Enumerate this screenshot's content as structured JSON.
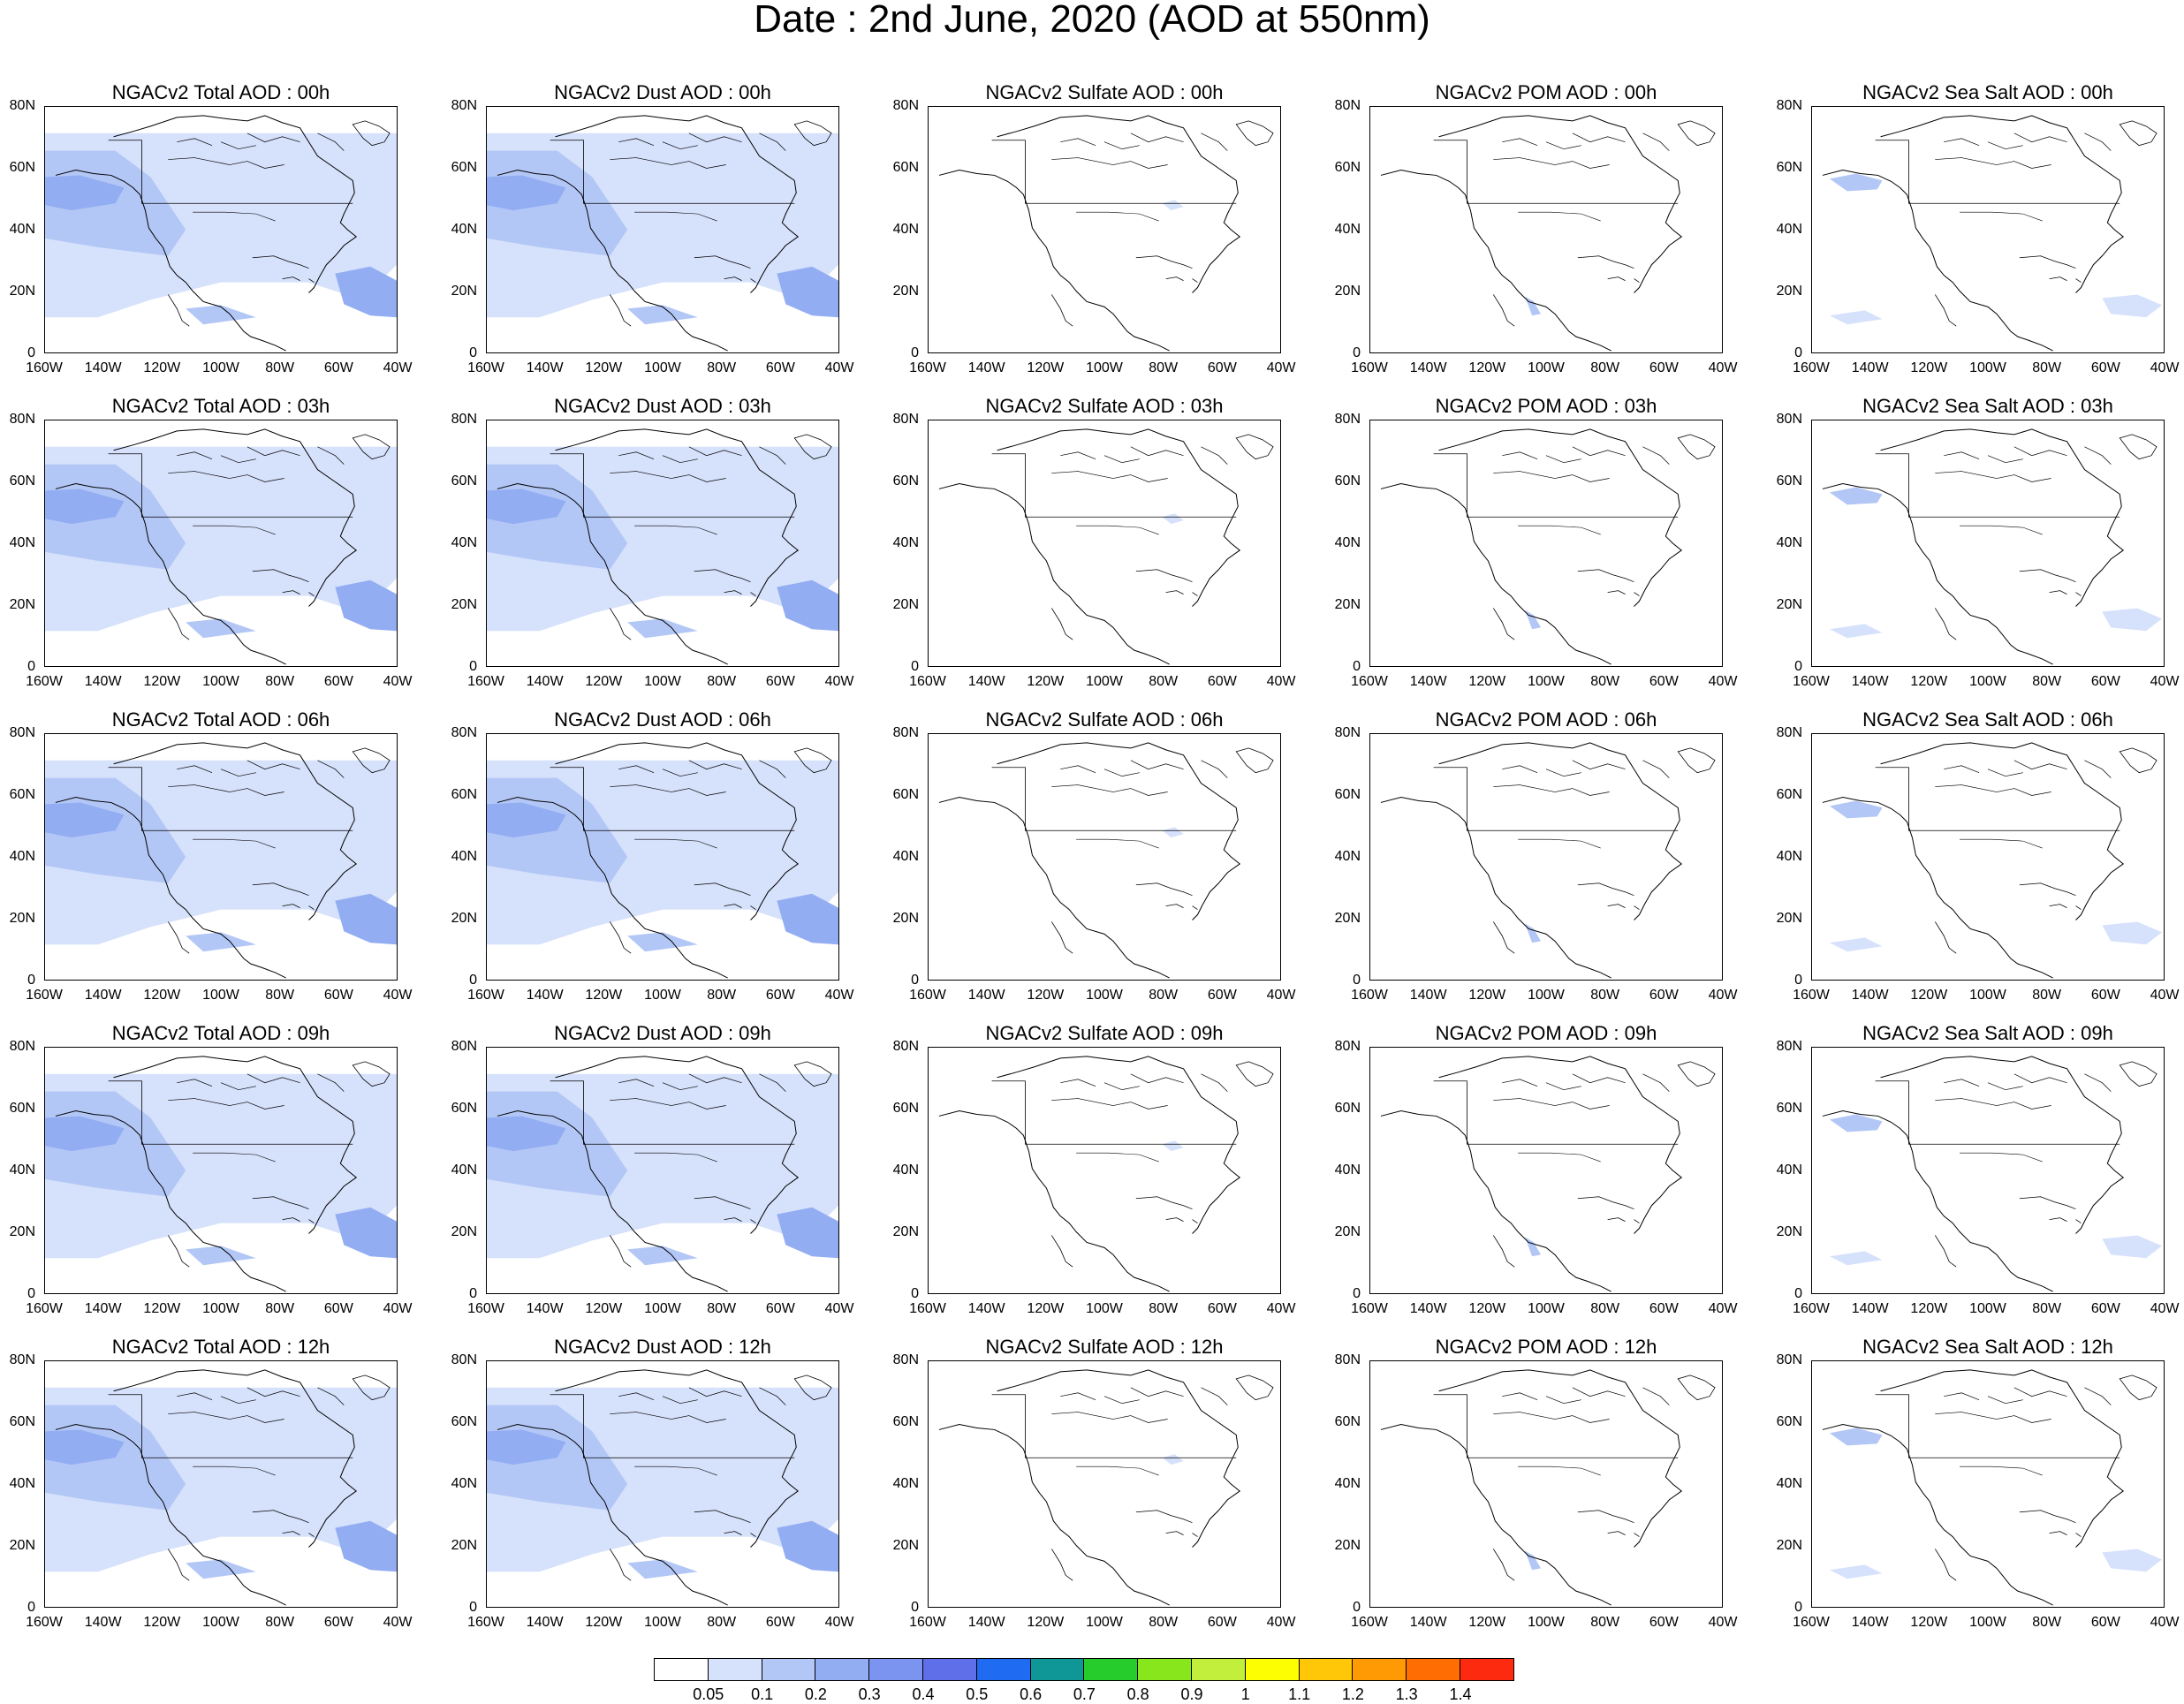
{
  "title": "Date : 2nd June, 2020 (AOD at 550nm)",
  "panels": [
    [
      "NGACv2 Total AOD : 00h",
      "NGACv2 Dust AOD : 00h",
      "NGACv2 Sulfate AOD : 00h",
      "NGACv2 POM AOD : 00h",
      "NGACv2 Sea Salt AOD : 00h"
    ],
    [
      "NGACv2 Total AOD : 03h",
      "NGACv2 Dust AOD : 03h",
      "NGACv2 Sulfate AOD : 03h",
      "NGACv2 POM AOD : 03h",
      "NGACv2 Sea Salt AOD : 03h"
    ],
    [
      "NGACv2 Total AOD : 06h",
      "NGACv2 Dust AOD : 06h",
      "NGACv2 Sulfate AOD : 06h",
      "NGACv2 POM AOD : 06h",
      "NGACv2 Sea Salt AOD : 06h"
    ],
    [
      "NGACv2 Total AOD : 09h",
      "NGACv2 Dust AOD : 09h",
      "NGACv2 Sulfate AOD : 09h",
      "NGACv2 POM AOD : 09h",
      "NGACv2 Sea Salt  AOD : 09h"
    ],
    [
      "NGACv2 Total AOD  : 12h",
      "NGACv2 Dust AOD : 12h",
      "NGACv2 Sulfate AOD : 12h",
      "NGACv2 POM  AOD : 12h",
      "NGACv2 Sea Salt  AOD : 12h"
    ]
  ],
  "y_ticks": [
    "80N",
    "60N",
    "40N",
    "20N",
    "0"
  ],
  "x_ticks": [
    "160W",
    "140W",
    "120W",
    "100W",
    "80W",
    "60W",
    "40W"
  ],
  "colorbar": {
    "labels": [
      "0.05",
      "0.1",
      "0.2",
      "0.3",
      "0.4",
      "0.5",
      "0.6",
      "0.7",
      "0.8",
      "0.9",
      "1",
      "1.1",
      "1.2",
      "1.3",
      "1.4"
    ],
    "colors": [
      "#ffffff",
      "#d6e1fb",
      "#b3c7f6",
      "#93adf3",
      "#7b94ef",
      "#5f6fe9",
      "#1f6cf2",
      "#0e9796",
      "#25cc2b",
      "#88e61c",
      "#c1ef3b",
      "#fefe02",
      "#ffc707",
      "#ff9a04",
      "#ff6d03",
      "#fe2a10"
    ]
  },
  "map_key": {
    "total": {
      "dark": "#93adf3",
      "mid": "#b3c7f6",
      "light": "#d6e1fb"
    },
    "dust": {
      "dark": "#93adf3",
      "mid": "#b3c7f6",
      "light": "#d6e1fb"
    },
    "sulfate": {
      "light": "#d6e1fb"
    },
    "pom": {
      "mid": "#b3c7f6"
    },
    "seasalt": {
      "mid": "#b3c7f6",
      "light": "#d6e1fb"
    }
  }
}
